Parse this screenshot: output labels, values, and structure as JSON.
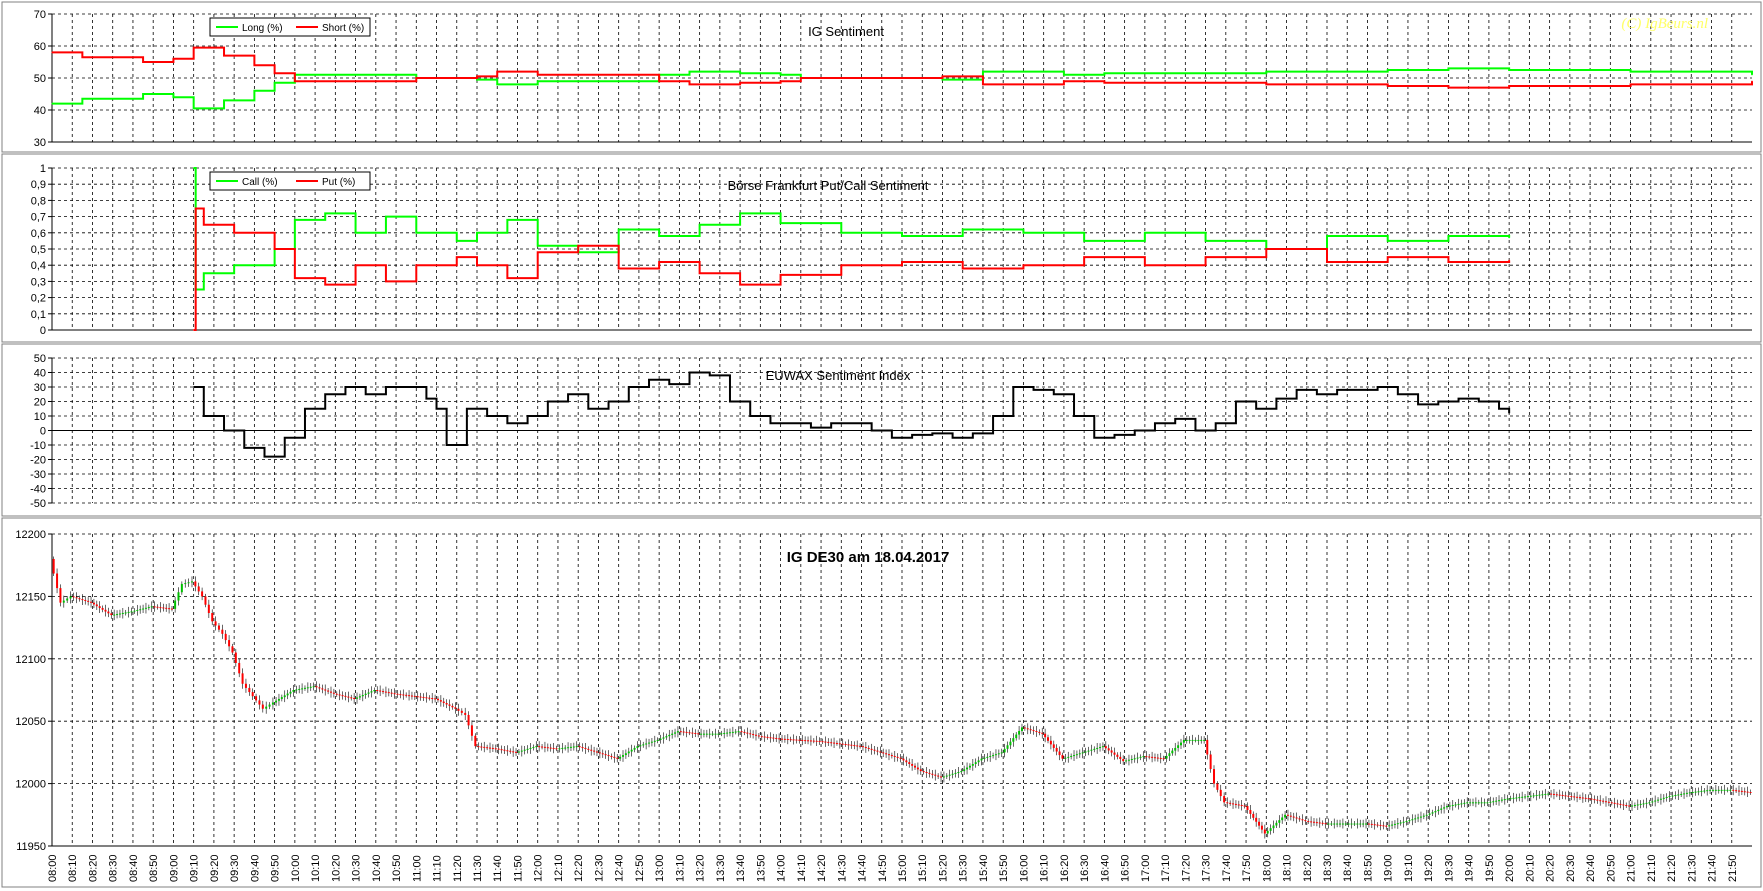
{
  "watermark": "(C) IgBeurs.nl",
  "time_labels": [
    "08:00",
    "08:10",
    "08:20",
    "08:30",
    "08:40",
    "08:50",
    "09:00",
    "09:10",
    "09:20",
    "09:30",
    "09:40",
    "09:50",
    "10:00",
    "10:10",
    "10:20",
    "10:30",
    "10:40",
    "10:50",
    "11:00",
    "11:10",
    "11:20",
    "11:30",
    "11:40",
    "11:50",
    "12:00",
    "12:10",
    "12:20",
    "12:30",
    "12:40",
    "12:50",
    "13:00",
    "13:10",
    "13:20",
    "13:30",
    "13:40",
    "13:50",
    "14:00",
    "14:10",
    "14:20",
    "14:30",
    "14:40",
    "14:50",
    "15:00",
    "15:10",
    "15:20",
    "15:30",
    "15:40",
    "15:50",
    "16:00",
    "16:10",
    "16:20",
    "16:30",
    "16:40",
    "16:50",
    "17:00",
    "17:10",
    "17:20",
    "17:30",
    "17:40",
    "17:50",
    "18:00",
    "18:10",
    "18:20",
    "18:30",
    "18:40",
    "18:50",
    "19:00",
    "19:10",
    "19:20",
    "19:30",
    "19:40",
    "19:50",
    "20:00",
    "20:10",
    "20:20",
    "20:30",
    "20:40",
    "20:50",
    "21:00",
    "21:10",
    "21:20",
    "21:30",
    "21:40",
    "21:50"
  ],
  "chart_data": [
    {
      "type": "line",
      "title": "IG Sentiment",
      "ylim": [
        30,
        70
      ],
      "yticks": [
        "70",
        "60",
        "50",
        "40",
        "30"
      ],
      "legend": "top-left",
      "colors": {
        "Long (%)": "#00ff00",
        "Short (%)": "#ff0000"
      },
      "series": [
        {
          "name": "Long (%)",
          "x": [
            "08:00",
            "08:15",
            "08:30",
            "08:45",
            "09:00",
            "09:10",
            "09:25",
            "09:40",
            "09:50",
            "10:00",
            "10:30",
            "11:00",
            "11:30",
            "11:40",
            "12:00",
            "12:30",
            "13:00",
            "13:15",
            "13:40",
            "14:00",
            "14:10",
            "14:30",
            "15:00",
            "15:20",
            "15:40",
            "16:00",
            "16:20",
            "16:40",
            "17:00",
            "17:40",
            "18:00",
            "19:00",
            "19:30",
            "20:00",
            "21:00",
            "22:00"
          ],
          "values": [
            42,
            43.5,
            43.5,
            45,
            44,
            40.5,
            43,
            46,
            48.5,
            51,
            51,
            50,
            49.5,
            48,
            49,
            49,
            51,
            52,
            51.5,
            51,
            50,
            50,
            50,
            49.5,
            52,
            52,
            51,
            51.5,
            51.5,
            51.5,
            52,
            52.5,
            53,
            52.5,
            52,
            51
          ]
        },
        {
          "name": "Short (%)",
          "x": [
            "08:00",
            "08:15",
            "08:30",
            "08:45",
            "09:00",
            "09:10",
            "09:25",
            "09:40",
            "09:50",
            "10:00",
            "10:30",
            "11:00",
            "11:30",
            "11:40",
            "12:00",
            "12:30",
            "13:00",
            "13:15",
            "13:40",
            "14:00",
            "14:10",
            "14:30",
            "15:00",
            "15:20",
            "15:40",
            "16:00",
            "16:20",
            "16:40",
            "17:00",
            "17:40",
            "18:00",
            "19:00",
            "19:30",
            "20:00",
            "21:00",
            "22:00"
          ],
          "values": [
            58,
            56.5,
            56.5,
            55,
            56,
            59.5,
            57,
            54,
            51.5,
            49,
            49,
            50,
            50.5,
            52,
            51,
            51,
            49,
            48,
            48.5,
            49,
            50,
            50,
            50,
            50.5,
            48,
            48,
            49,
            48.5,
            48.5,
            48.5,
            48,
            47.5,
            47,
            47.5,
            48,
            49
          ]
        }
      ]
    },
    {
      "type": "line",
      "title": "Börse Frankfurt Put/Call Sentiment",
      "ylim": [
        0,
        1
      ],
      "yticks": [
        "1",
        "0,9",
        "0,8",
        "0,7",
        "0,6",
        "0,5",
        "0,4",
        "0,3",
        "0,2",
        "0,1",
        "0"
      ],
      "legend": "top-left",
      "colors": {
        "Call (%)": "#00ff00",
        "Put (%)": "#ff0000"
      },
      "series": [
        {
          "name": "Call (%)",
          "x": [
            "09:10",
            "09:11",
            "09:15",
            "09:30",
            "09:50",
            "10:00",
            "10:15",
            "10:30",
            "10:45",
            "11:00",
            "11:20",
            "11:30",
            "11:45",
            "12:00",
            "12:20",
            "12:40",
            "13:00",
            "13:20",
            "13:40",
            "14:00",
            "14:30",
            "15:00",
            "15:30",
            "16:00",
            "16:30",
            "17:00",
            "17:30",
            "18:00",
            "18:30",
            "19:00",
            "19:30",
            "20:00"
          ],
          "values": [
            1,
            0.25,
            0.35,
            0.4,
            0.5,
            0.68,
            0.72,
            0.6,
            0.7,
            0.6,
            0.55,
            0.6,
            0.68,
            0.52,
            0.48,
            0.62,
            0.58,
            0.65,
            0.72,
            0.66,
            0.6,
            0.58,
            0.62,
            0.6,
            0.55,
            0.6,
            0.55,
            0.5,
            0.58,
            0.55,
            0.58,
            0.57
          ]
        },
        {
          "name": "Put (%)",
          "x": [
            "09:10",
            "09:11",
            "09:15",
            "09:30",
            "09:50",
            "10:00",
            "10:15",
            "10:30",
            "10:45",
            "11:00",
            "11:20",
            "11:30",
            "11:45",
            "12:00",
            "12:20",
            "12:40",
            "13:00",
            "13:20",
            "13:40",
            "14:00",
            "14:30",
            "15:00",
            "15:30",
            "16:00",
            "16:30",
            "17:00",
            "17:30",
            "18:00",
            "18:30",
            "19:00",
            "19:30",
            "20:00"
          ],
          "values": [
            0,
            0.75,
            0.65,
            0.6,
            0.5,
            0.32,
            0.28,
            0.4,
            0.3,
            0.4,
            0.45,
            0.4,
            0.32,
            0.48,
            0.52,
            0.38,
            0.42,
            0.35,
            0.28,
            0.34,
            0.4,
            0.42,
            0.38,
            0.4,
            0.45,
            0.4,
            0.45,
            0.5,
            0.42,
            0.45,
            0.42,
            0.43
          ]
        }
      ]
    },
    {
      "type": "line",
      "title": "EUWAX  Sentiment Index",
      "ylim": [
        -50,
        50
      ],
      "yticks": [
        "50",
        "40",
        "30",
        "20",
        "10",
        "0",
        "-10",
        "-20",
        "-30",
        "-40",
        "-50"
      ],
      "colors": {
        "EUWAX": "#000000"
      },
      "series": [
        {
          "name": "",
          "x": [
            "09:10",
            "09:15",
            "09:25",
            "09:35",
            "09:45",
            "09:55",
            "10:05",
            "10:15",
            "10:25",
            "10:35",
            "10:45",
            "10:55",
            "11:05",
            "11:10",
            "11:15",
            "11:25",
            "11:35",
            "11:45",
            "11:55",
            "12:05",
            "12:15",
            "12:25",
            "12:35",
            "12:45",
            "12:55",
            "13:05",
            "13:15",
            "13:25",
            "13:35",
            "13:45",
            "13:55",
            "14:05",
            "14:15",
            "14:25",
            "14:35",
            "14:45",
            "14:55",
            "15:05",
            "15:15",
            "15:25",
            "15:35",
            "15:45",
            "15:55",
            "16:05",
            "16:15",
            "16:25",
            "16:35",
            "16:45",
            "16:55",
            "17:05",
            "17:15",
            "17:25",
            "17:35",
            "17:45",
            "17:55",
            "18:05",
            "18:15",
            "18:25",
            "18:35",
            "18:45",
            "18:55",
            "19:05",
            "19:15",
            "19:25",
            "19:35",
            "19:45",
            "19:55",
            "20:00"
          ],
          "values": [
            30,
            10,
            0,
            -12,
            -18,
            -5,
            15,
            25,
            30,
            25,
            30,
            30,
            22,
            15,
            -10,
            15,
            10,
            5,
            10,
            20,
            25,
            15,
            20,
            30,
            35,
            32,
            40,
            38,
            20,
            10,
            5,
            5,
            2,
            5,
            5,
            0,
            -5,
            -3,
            -2,
            -5,
            -2,
            10,
            30,
            28,
            25,
            10,
            -5,
            -3,
            0,
            5,
            8,
            0,
            5,
            20,
            15,
            22,
            28,
            25,
            28,
            28,
            30,
            25,
            18,
            20,
            22,
            20,
            15,
            12
          ]
        }
      ]
    },
    {
      "type": "bar",
      "title": "IG DE30 am 18.04.2017",
      "ylim": [
        11950,
        12200
      ],
      "yticks": [
        "12200",
        "12150",
        "12100",
        "12050",
        "12000",
        "11950"
      ],
      "up_color": "#00c000",
      "down_color": "#ff0000",
      "series": [
        {
          "name": "",
          "x": [
            "08:00",
            "08:05",
            "08:10",
            "08:20",
            "08:30",
            "08:40",
            "08:50",
            "09:00",
            "09:05",
            "09:10",
            "09:15",
            "09:20",
            "09:25",
            "09:30",
            "09:35",
            "09:40",
            "09:45",
            "09:50",
            "10:00",
            "10:10",
            "10:20",
            "10:30",
            "10:40",
            "10:50",
            "11:00",
            "11:10",
            "11:20",
            "11:25",
            "11:30",
            "11:40",
            "11:50",
            "12:00",
            "12:10",
            "12:20",
            "12:30",
            "12:40",
            "12:50",
            "13:00",
            "13:10",
            "13:20",
            "13:30",
            "13:40",
            "13:50",
            "14:00",
            "14:10",
            "14:20",
            "14:30",
            "14:40",
            "14:50",
            "15:00",
            "15:10",
            "15:20",
            "15:30",
            "15:40",
            "15:50",
            "16:00",
            "16:10",
            "16:20",
            "16:30",
            "16:40",
            "16:50",
            "17:00",
            "17:10",
            "17:20",
            "17:30",
            "17:35",
            "17:40",
            "17:50",
            "18:00",
            "18:10",
            "18:20",
            "18:30",
            "18:40",
            "18:50",
            "19:00",
            "19:10",
            "19:20",
            "19:30",
            "19:40",
            "19:50",
            "20:00",
            "20:10",
            "20:20",
            "20:30",
            "20:40",
            "20:50",
            "21:00",
            "21:10",
            "21:20",
            "21:30",
            "21:40",
            "21:50",
            "22:00"
          ],
          "values": [
            12180,
            12145,
            12150,
            12145,
            12135,
            12138,
            12142,
            12140,
            12160,
            12162,
            12150,
            12130,
            12120,
            12105,
            12080,
            12070,
            12060,
            12065,
            12075,
            12078,
            12072,
            12068,
            12075,
            12072,
            12070,
            12068,
            12060,
            12055,
            12030,
            12028,
            12025,
            12030,
            12028,
            12030,
            12025,
            12020,
            12030,
            12035,
            12042,
            12040,
            12040,
            12042,
            12038,
            12036,
            12035,
            12034,
            12032,
            12030,
            12025,
            12020,
            12010,
            12005,
            12010,
            12020,
            12025,
            12045,
            12040,
            12020,
            12025,
            12030,
            12018,
            12022,
            12020,
            12035,
            12035,
            12000,
            11985,
            11982,
            11960,
            11975,
            11970,
            11968,
            11968,
            11968,
            11966,
            11970,
            11975,
            11982,
            11985,
            11985,
            11988,
            11990,
            11992,
            11990,
            11988,
            11985,
            11982,
            11985,
            11990,
            11993,
            11995,
            11995,
            11993
          ]
        }
      ]
    }
  ]
}
